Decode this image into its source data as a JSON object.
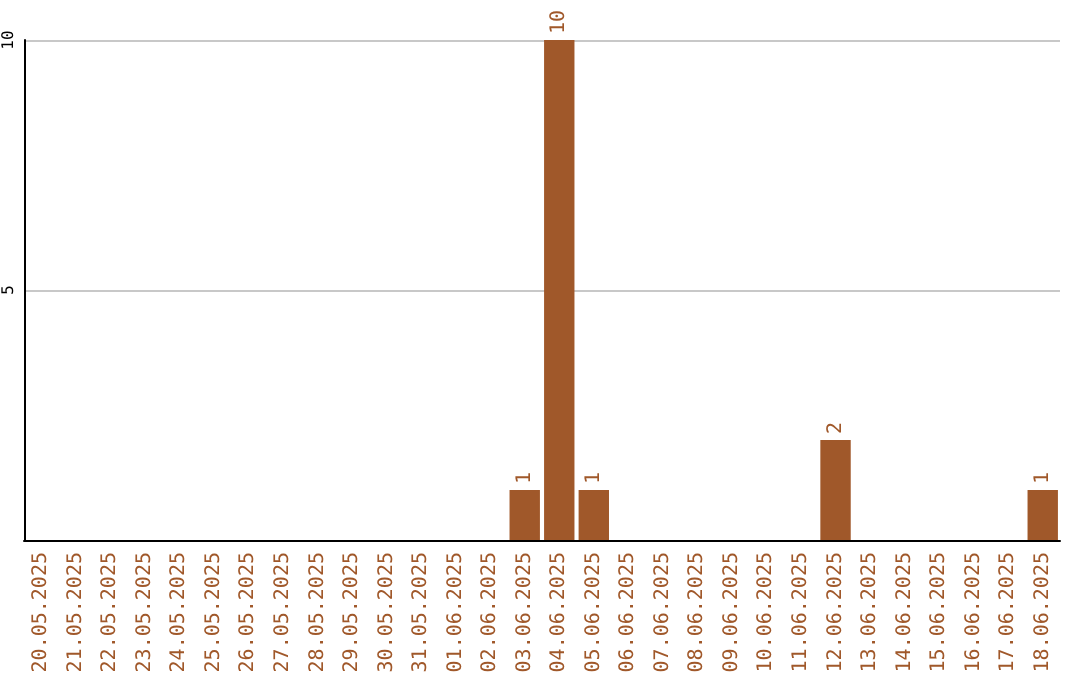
{
  "chart_data": {
    "type": "bar",
    "categories": [
      "20.05.2025",
      "21.05.2025",
      "22.05.2025",
      "23.05.2025",
      "24.05.2025",
      "25.05.2025",
      "26.05.2025",
      "27.05.2025",
      "28.05.2025",
      "29.05.2025",
      "30.05.2025",
      "31.05.2025",
      "01.06.2025",
      "02.06.2025",
      "03.06.2025",
      "04.06.2025",
      "05.06.2025",
      "06.06.2025",
      "07.06.2025",
      "08.06.2025",
      "09.06.2025",
      "10.06.2025",
      "11.06.2025",
      "12.06.2025",
      "13.06.2025",
      "14.06.2025",
      "15.06.2025",
      "16.06.2025",
      "17.06.2025",
      "18.06.2025"
    ],
    "values": [
      0,
      0,
      0,
      0,
      0,
      0,
      0,
      0,
      0,
      0,
      0,
      0,
      0,
      0,
      1,
      10,
      1,
      0,
      0,
      0,
      0,
      0,
      0,
      2,
      0,
      0,
      0,
      0,
      0,
      1
    ],
    "value_labels": [
      null,
      null,
      null,
      null,
      null,
      null,
      null,
      null,
      null,
      null,
      null,
      null,
      null,
      null,
      "1",
      "10",
      "1",
      null,
      null,
      null,
      null,
      null,
      null,
      "2",
      null,
      null,
      null,
      null,
      null,
      "1"
    ],
    "color": "#a0582a",
    "ylim": [
      0,
      10
    ],
    "yticks": [
      5,
      10
    ],
    "grid": "y"
  }
}
